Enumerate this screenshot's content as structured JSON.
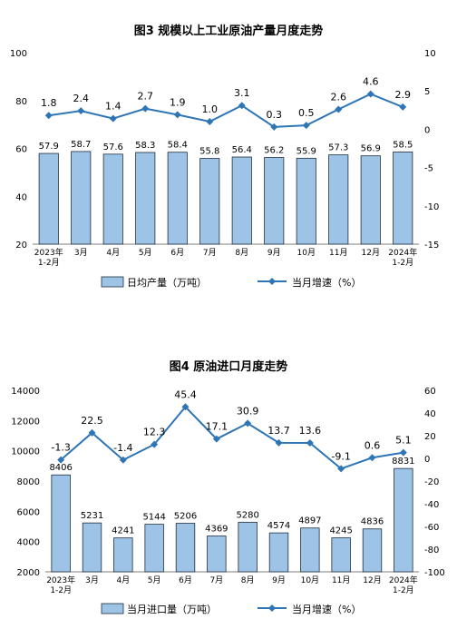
{
  "chart_data": [
    {
      "type": "bar+line",
      "title": "图3  规模以上工业原油产量月度走势",
      "categories": [
        "2023年\n1-2月",
        "3月",
        "4月",
        "5月",
        "6月",
        "7月",
        "8月",
        "9月",
        "10月",
        "11月",
        "12月",
        "2024年\n1-2月"
      ],
      "left_axis": {
        "ylim": [
          20,
          100
        ],
        "ticks": [
          "20",
          "40",
          "60",
          "80",
          "100"
        ]
      },
      "right_axis": {
        "ylim": [
          -15,
          10
        ],
        "ticks": [
          "-15",
          "-10",
          "-5",
          "0",
          "5",
          "10"
        ]
      },
      "series": [
        {
          "name": "日均产量（万吨）",
          "type": "bar",
          "axis": "left",
          "values": [
            57.9,
            58.7,
            57.6,
            58.3,
            58.4,
            55.8,
            56.4,
            56.2,
            55.9,
            57.3,
            56.9,
            58.5
          ],
          "labels": [
            "57.9",
            "58.7",
            "57.6",
            "58.3",
            "58.4",
            "55.8",
            "56.4",
            "56.2",
            "55.9",
            "57.3",
            "56.9",
            "58.5"
          ]
        },
        {
          "name": "当月增速（%）",
          "type": "line",
          "axis": "right",
          "values": [
            1.8,
            2.4,
            1.4,
            2.7,
            1.9,
            1.0,
            3.1,
            0.3,
            0.5,
            2.6,
            4.6,
            2.9
          ],
          "labels": [
            "1.8",
            "2.4",
            "1.4",
            "2.7",
            "1.9",
            "1.0",
            "3.1",
            "0.3",
            "0.5",
            "2.6",
            "4.6",
            "2.9"
          ]
        }
      ],
      "colors": {
        "bar_fill": "#9dc3e6",
        "bar_stroke": "#1f2d3d",
        "line": "#2e75b6"
      }
    },
    {
      "type": "bar+line",
      "title": "图4  原油进口月度走势",
      "categories": [
        "2023年\n1-2月",
        "3月",
        "4月",
        "5月",
        "6月",
        "7月",
        "8月",
        "9月",
        "10月",
        "11月",
        "12月",
        "2024年\n1-2月"
      ],
      "left_axis": {
        "ylim": [
          2000,
          14000
        ],
        "ticks": [
          "2000",
          "4000",
          "6000",
          "8000",
          "10000",
          "12000",
          "14000"
        ]
      },
      "right_axis": {
        "ylim": [
          -100,
          60
        ],
        "ticks": [
          "-100",
          "-80",
          "-60",
          "-40",
          "-20",
          "0",
          "20",
          "40",
          "60"
        ]
      },
      "series": [
        {
          "name": "当月进口量（万吨）",
          "type": "bar",
          "axis": "left",
          "values": [
            8406,
            5231,
            4241,
            5144,
            5206,
            4369,
            5280,
            4574,
            4897,
            4245,
            4836,
            8831
          ],
          "labels": [
            "8406",
            "5231",
            "4241",
            "5144",
            "5206",
            "4369",
            "5280",
            "4574",
            "4897",
            "4245",
            "4836",
            "8831"
          ]
        },
        {
          "name": "当月增速（%）",
          "type": "line",
          "axis": "right",
          "values": [
            -1.3,
            22.5,
            -1.4,
            12.3,
            45.4,
            17.1,
            30.9,
            13.7,
            13.6,
            -9.1,
            0.6,
            5.1
          ],
          "labels": [
            "-1.3",
            "22.5",
            "-1.4",
            "12.3",
            "45.4",
            "17.1",
            "30.9",
            "13.7",
            "13.6",
            "-9.1",
            "0.6",
            "5.1"
          ]
        }
      ],
      "colors": {
        "bar_fill": "#9dc3e6",
        "bar_stroke": "#1f2d3d",
        "line": "#2e75b6"
      }
    }
  ]
}
